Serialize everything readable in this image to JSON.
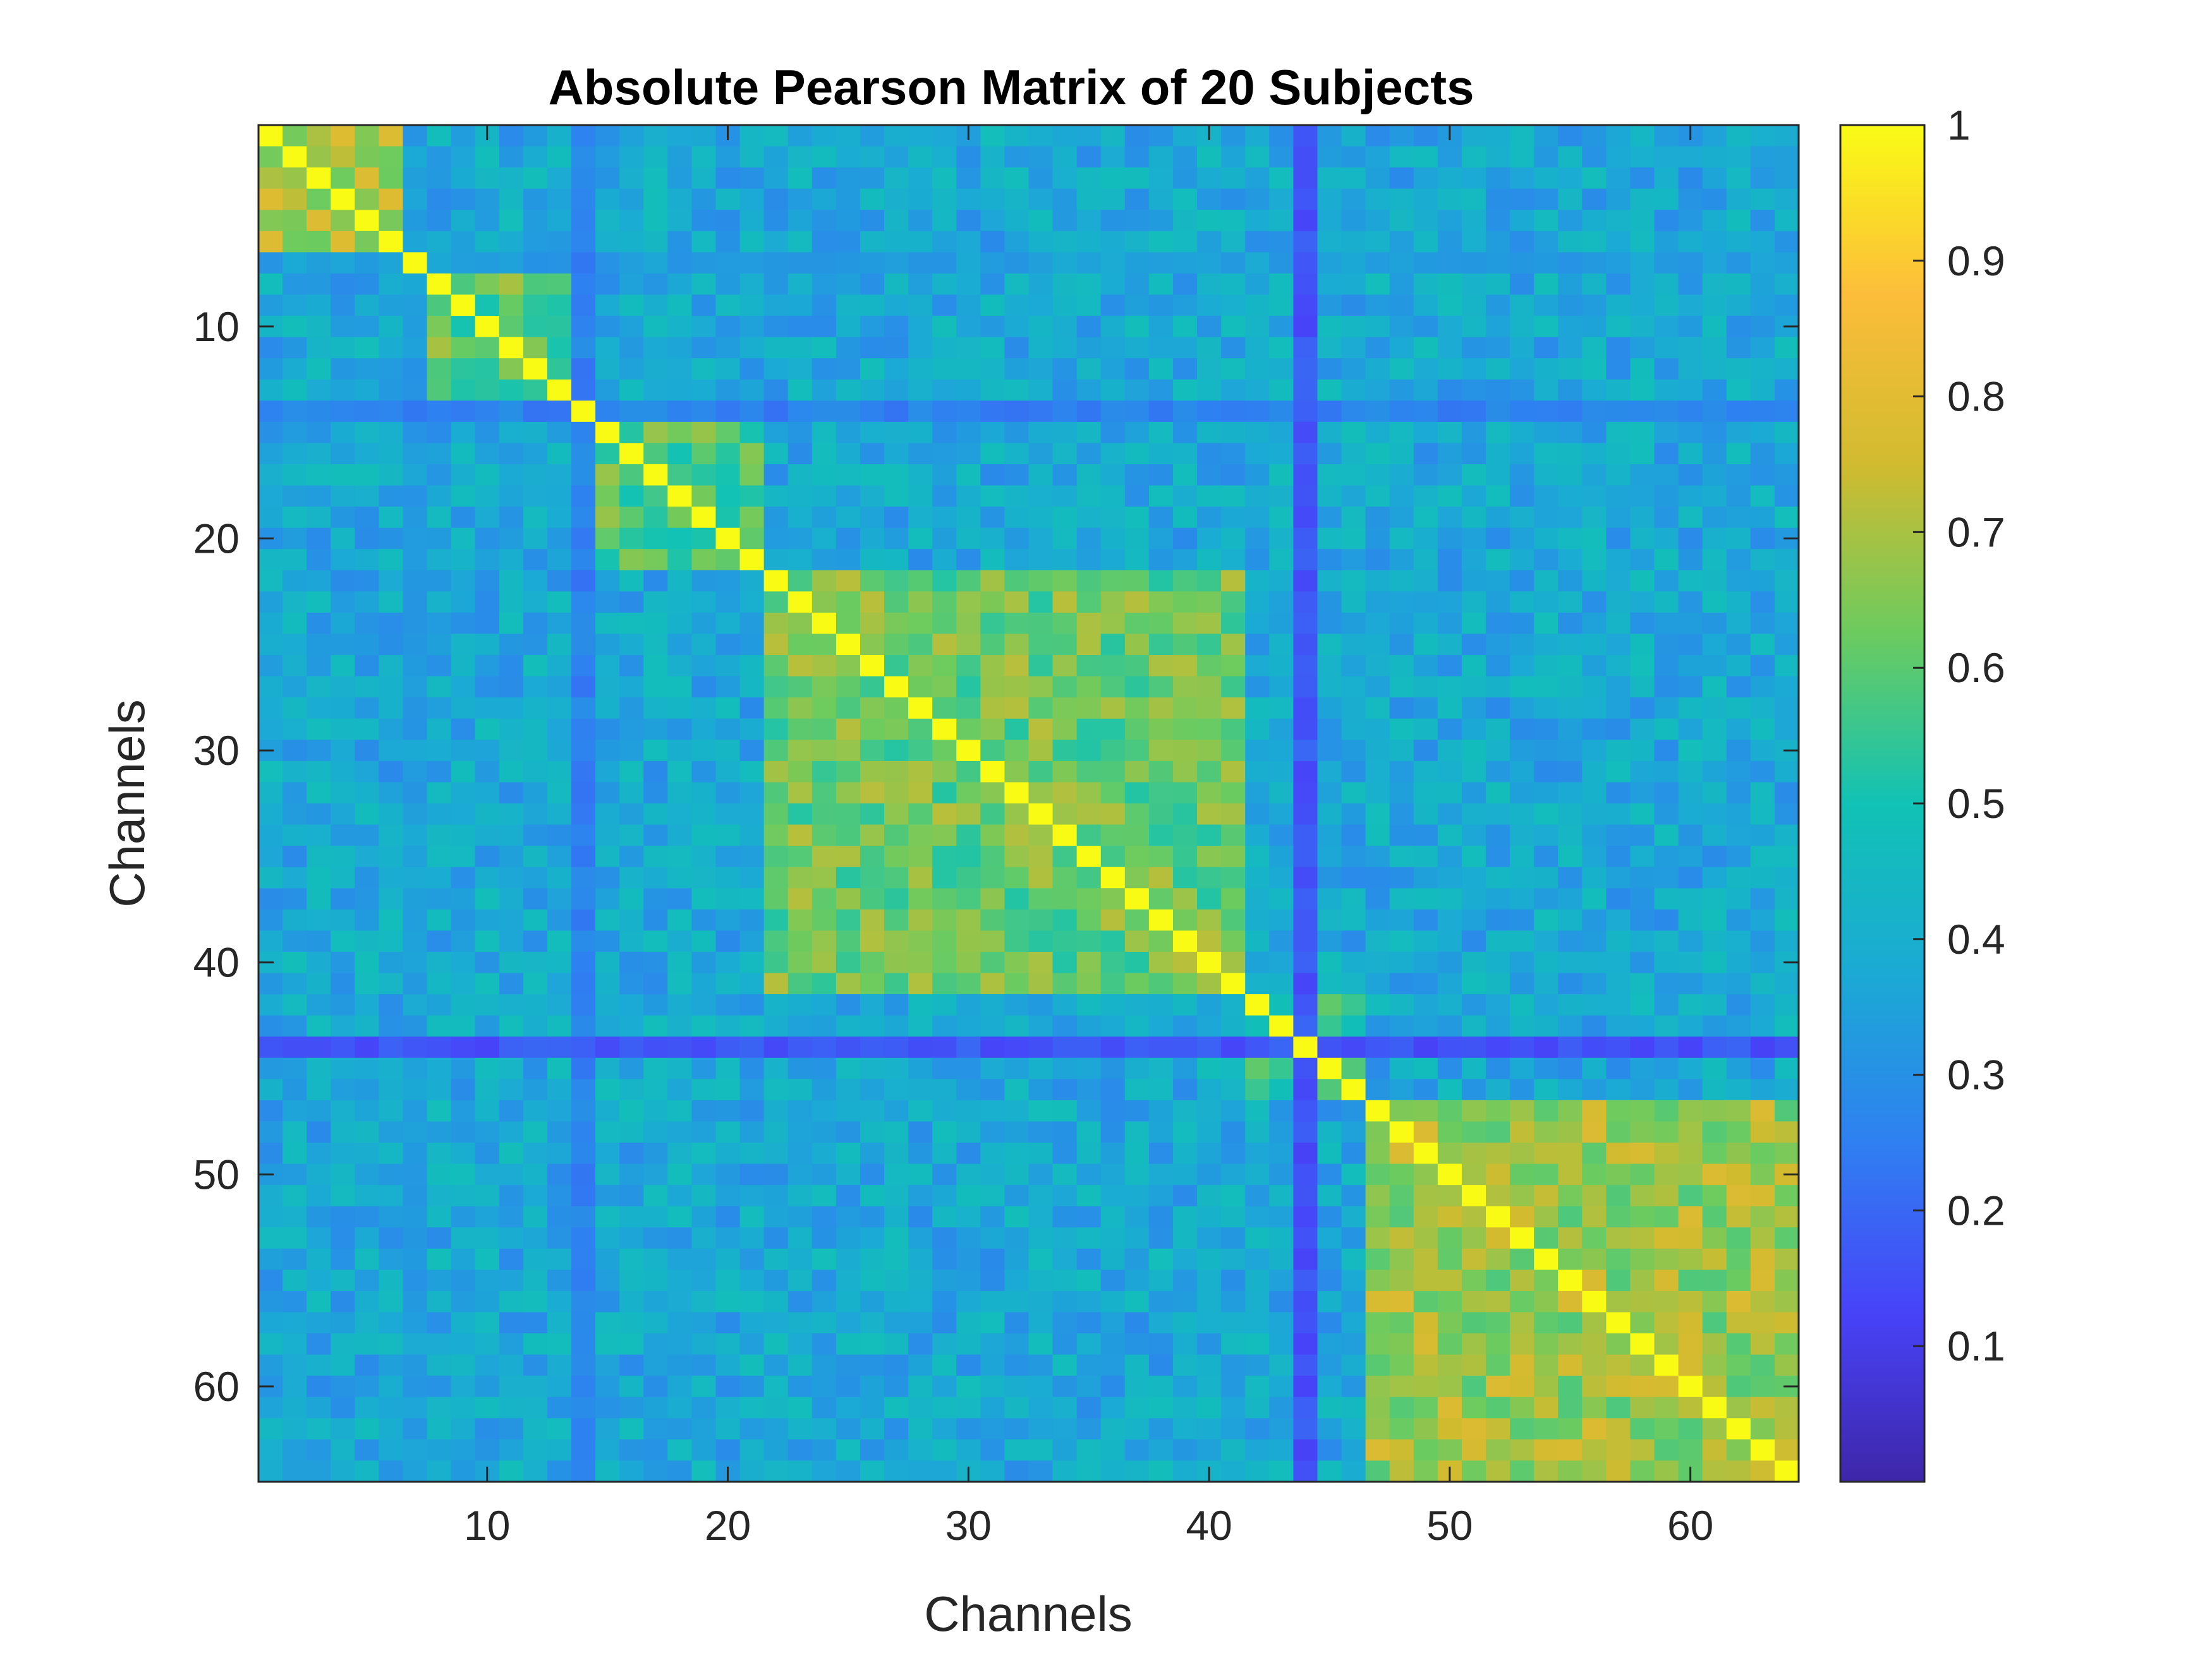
{
  "chart_data": {
    "type": "heatmap",
    "title": "Absolute Pearson Matrix of 20 Subjects",
    "xlabel": "Channels",
    "ylabel": "Channels",
    "n_channels": 64,
    "x_ticks": [
      10,
      20,
      30,
      40,
      50,
      60
    ],
    "y_ticks": [
      10,
      20,
      30,
      40,
      50,
      60
    ],
    "colorbar_ticks": [
      0.1,
      0.2,
      0.3,
      0.4,
      0.5,
      0.6,
      0.7,
      0.8,
      0.9,
      1
    ],
    "colorbar_tick_labels": [
      "0.1",
      "0.2",
      "0.3",
      "0.4",
      "0.5",
      "0.6",
      "0.7",
      "0.8",
      "0.9",
      "1"
    ],
    "clim": [
      0,
      1
    ],
    "colormap": "parula",
    "colormap_stops": [
      "#3E26A8",
      "#4743F8",
      "#2F80F1",
      "#1BAAD4",
      "#11C2B5",
      "#6CCB5F",
      "#D1BB2F",
      "#FCBD3A",
      "#F9FB15"
    ],
    "diagonal_value": 1.0,
    "block_groups": [
      {
        "channels": [
          1,
          6
        ],
        "within": 0.72
      },
      {
        "channels": [
          7,
          13
        ],
        "within": 0.6
      },
      {
        "channels": [
          14,
          21
        ],
        "within": 0.58
      },
      {
        "channels": [
          22,
          41
        ],
        "within": 0.62
      },
      {
        "channels": [
          42,
          46
        ],
        "within": 0.55
      },
      {
        "channels": [
          47,
          64
        ],
        "within": 0.68
      }
    ],
    "low_correlation_channels": [
      {
        "channel": 7,
        "level": 0.3
      },
      {
        "channel": 14,
        "level": 0.22
      },
      {
        "channel": 44,
        "level": 0.12
      }
    ],
    "background_correlation": 0.38
  }
}
